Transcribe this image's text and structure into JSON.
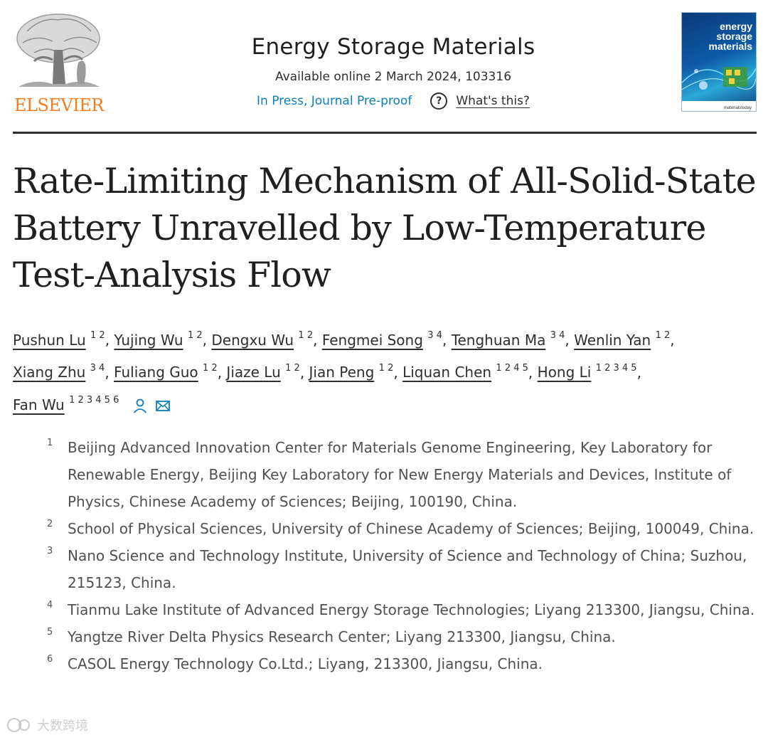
{
  "publisher": {
    "name": "ELSEVIER"
  },
  "journal": {
    "name": "Energy Storage Materials",
    "available": "Available online 2 March 2024, 103316",
    "status": "In Press, Journal Pre-proof",
    "whats_this": "What's this?",
    "cover_title_lines": [
      "energy",
      "storage",
      "materials"
    ],
    "cover_footer": "materialstoday"
  },
  "colors": {
    "publisher_orange": "#f47b20",
    "link_blue": "#0c7dbb"
  },
  "article": {
    "title": "Rate-Limiting Mechanism of All-Solid-State Battery Unravelled by Low-Temperature Test-Analysis Flow",
    "authors": [
      {
        "name": "Pushun Lu",
        "affils": "1 2"
      },
      {
        "name": "Yujing Wu",
        "affils": "1 2"
      },
      {
        "name": "Dengxu Wu",
        "affils": "1 2"
      },
      {
        "name": "Fengmei Song",
        "affils": "3 4"
      },
      {
        "name": "Tenghuan Ma",
        "affils": "3 4"
      },
      {
        "name": "Wenlin Yan",
        "affils": "1 2"
      },
      {
        "name": "Xiang Zhu",
        "affils": "3 4"
      },
      {
        "name": "Fuliang Guo",
        "affils": "1 2"
      },
      {
        "name": "Jiaze Lu",
        "affils": "1 2"
      },
      {
        "name": "Jian Peng",
        "affils": "1 2"
      },
      {
        "name": "Liquan Chen",
        "affils": "1 2 4 5"
      },
      {
        "name": "Hong Li",
        "affils": "1 2 3 4 5"
      },
      {
        "name": "Fan Wu",
        "affils": "1 2 3 4 5 6"
      }
    ],
    "affiliations": [
      {
        "num": "1",
        "text": "Beijing Advanced Innovation Center for Materials Genome Engineering, Key Laboratory for Renewable Energy, Beijing Key Laboratory for New Energy Materials and Devices, Institute of Physics, Chinese Academy of Sciences; Beijing, 100190, China."
      },
      {
        "num": "2",
        "text": "School of Physical Sciences, University of Chinese Academy of Sciences; Beijing, 100049, China."
      },
      {
        "num": "3",
        "text": "Nano Science and Technology Institute, University of Science and Technology of China; Suzhou, 215123, China."
      },
      {
        "num": "4",
        "text": "Tianmu Lake Institute of Advanced Energy Storage Technologies; Liyang 213300, Jiangsu, China."
      },
      {
        "num": "5",
        "text": "Yangtze River Delta Physics Research Center; Liyang 213300, Jiangsu, China."
      },
      {
        "num": "6",
        "text": "CASOL Energy Technology Co.Ltd.; Liyang, 213300, Jiangsu, China."
      }
    ]
  },
  "watermark": "大数跨境"
}
